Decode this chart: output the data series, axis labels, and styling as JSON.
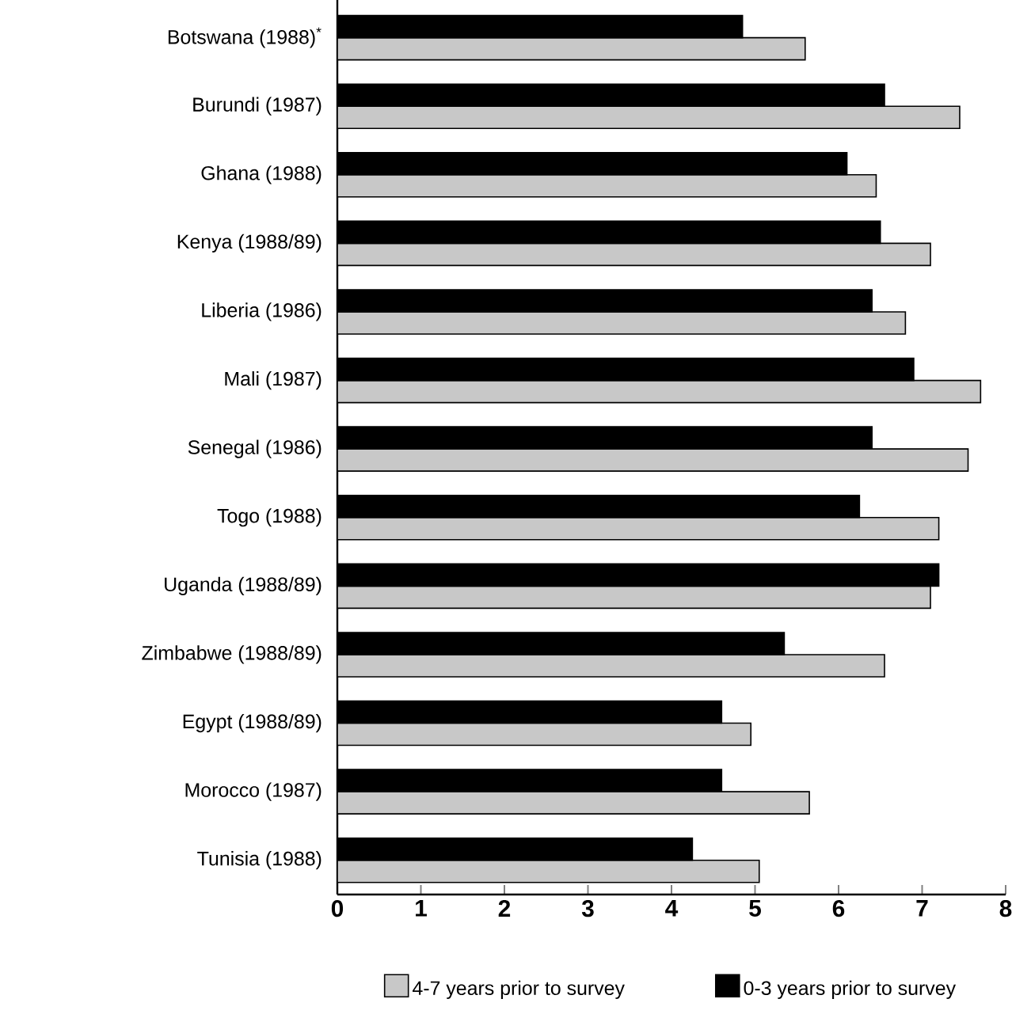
{
  "chart_data": {
    "type": "bar",
    "orientation": "horizontal",
    "categories": [
      "Botswana (1988)$^{*}$",
      "Burundi (1987)",
      "Ghana (1988)",
      "Kenya (1988/89)",
      "Liberia (1986)",
      "Mali (1987)",
      "Senegal (1986)",
      "Togo (1988)",
      "Uganda (1988/89)",
      "Zimbabwe (1988/89)",
      "Egypt (1988/89)",
      "Morocco (1987)",
      "Tunisia (1988)"
    ],
    "series": [
      {
        "name": "4-7 years prior to survey",
        "color": "#c8c8c8",
        "values": [
          5.6,
          7.45,
          6.45,
          7.1,
          6.8,
          7.7,
          7.55,
          7.2,
          7.1,
          6.55,
          4.95,
          5.65,
          5.05
        ]
      },
      {
        "name": "0-3 years prior to survey",
        "color": "#000000",
        "values": [
          4.85,
          6.55,
          6.1,
          6.5,
          6.4,
          6.9,
          6.4,
          6.25,
          7.2,
          5.35,
          4.6,
          4.6,
          4.25
        ]
      }
    ],
    "xlim": [
      0,
      8
    ],
    "xticks": [
      0,
      1,
      2,
      3,
      4,
      5,
      6,
      7,
      8
    ],
    "grid": false,
    "legend": "bottom"
  }
}
